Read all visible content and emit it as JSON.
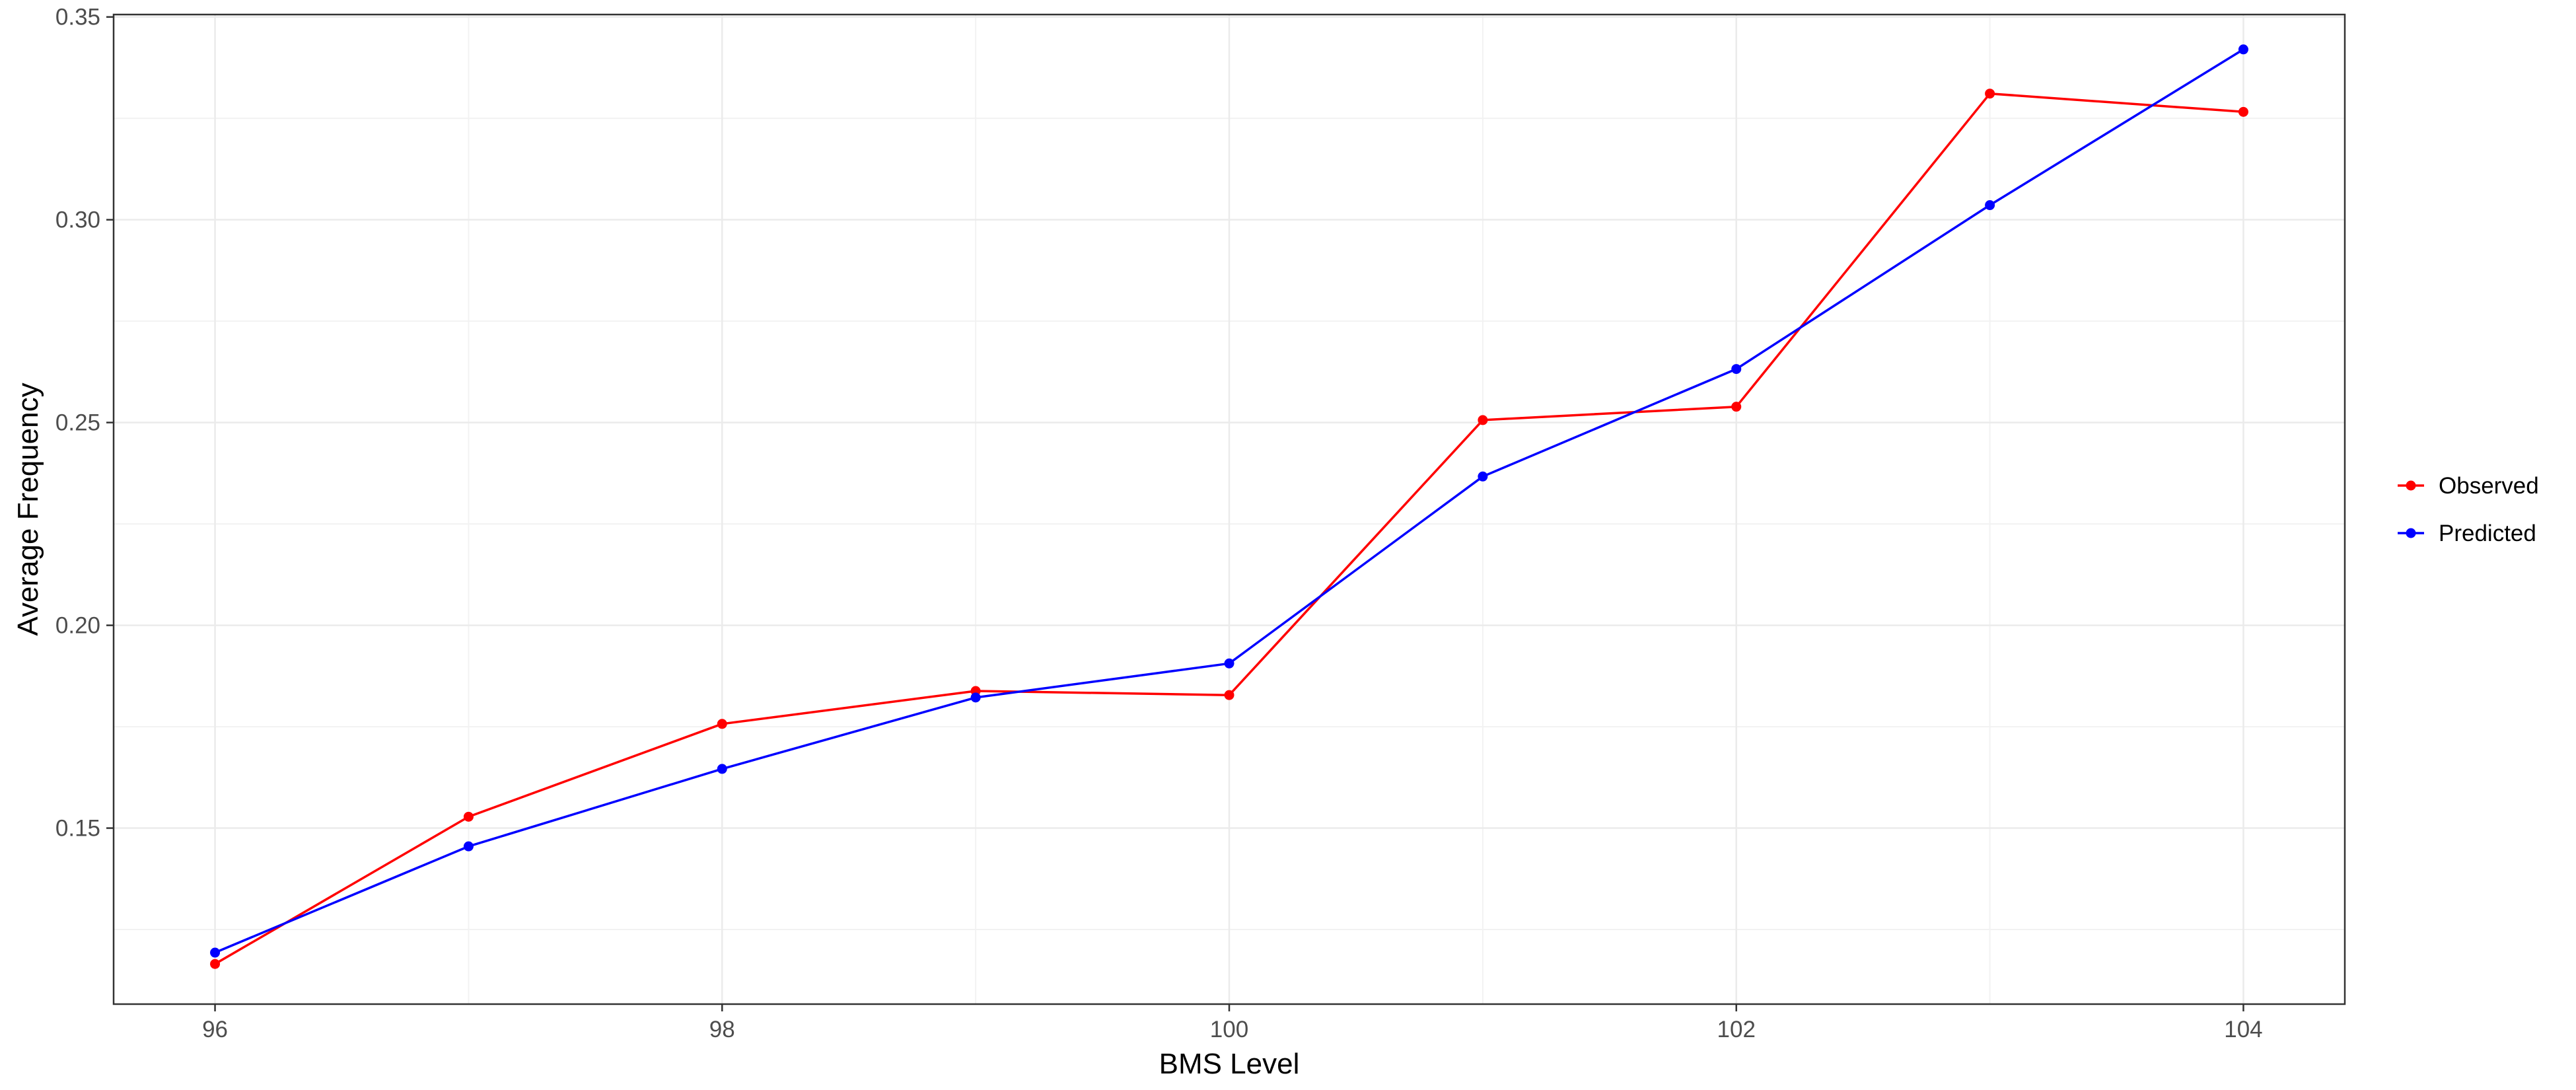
{
  "chart_data": {
    "type": "line",
    "title": "",
    "xlabel": "BMS Level",
    "ylabel": "Average Frequency",
    "x": [
      96,
      97,
      98,
      99,
      100,
      101,
      102,
      103,
      104
    ],
    "xlim": [
      95.6,
      104.4
    ],
    "ylim": [
      0.1066,
      0.3506
    ],
    "x_ticks": [
      96,
      98,
      100,
      102,
      104
    ],
    "y_ticks": [
      0.15,
      0.2,
      0.25,
      0.3,
      0.35
    ],
    "y_tick_labels": [
      "0.15",
      "0.20",
      "0.25",
      "0.30",
      "0.35"
    ],
    "grid": true,
    "legend_position": "right",
    "series": [
      {
        "name": "Observed",
        "color": "#ff0000",
        "values": [
          0.1165,
          0.1528,
          0.1757,
          0.1838,
          0.1828,
          0.2506,
          0.2539,
          0.3311,
          0.3266
        ]
      },
      {
        "name": "Predicted",
        "color": "#0000ff",
        "values": [
          0.1193,
          0.1455,
          0.1646,
          0.1822,
          0.1906,
          0.2367,
          0.2632,
          0.3036,
          0.342
        ]
      }
    ]
  }
}
